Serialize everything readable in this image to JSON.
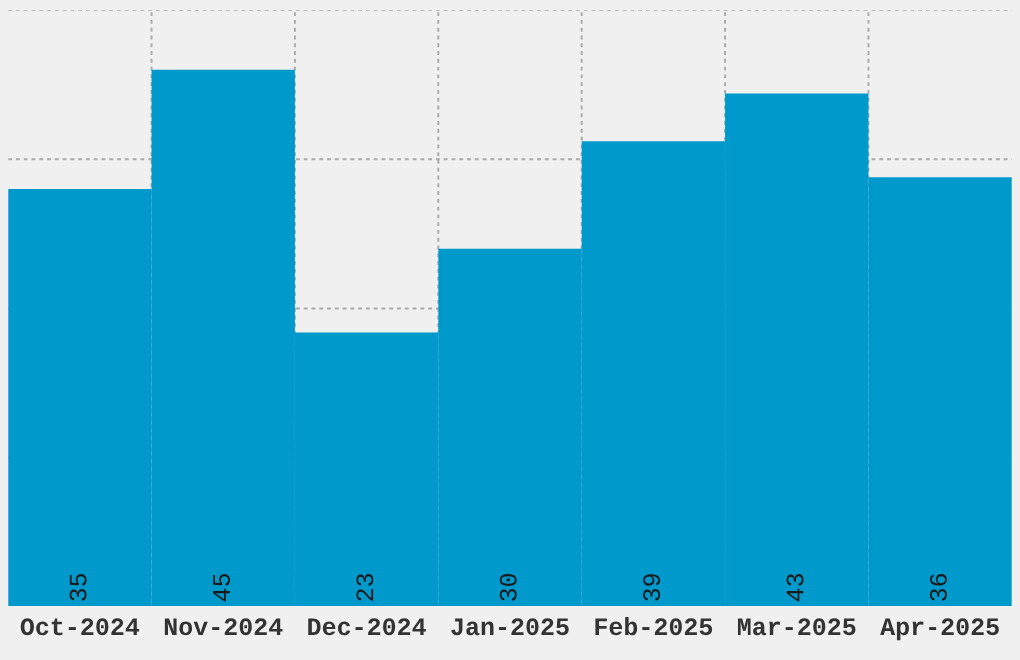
{
  "chart_data": {
    "type": "bar",
    "categories": [
      "Oct-2024",
      "Nov-2024",
      "Dec-2024",
      "Jan-2025",
      "Feb-2025",
      "Mar-2025",
      "Apr-2025"
    ],
    "values": [
      35,
      45,
      23,
      30,
      39,
      43,
      36
    ],
    "color": "#0099cc",
    "ylim": [
      0,
      50
    ],
    "yticks": [
      {
        "value": 12.5,
        "label": null
      },
      {
        "value": 25,
        "label": null
      },
      {
        "value": 37.5,
        "label": null
      },
      {
        "value": 50,
        "label": null
      }
    ],
    "tick_labels": "x",
    "grid": true,
    "data_labels": true
  }
}
